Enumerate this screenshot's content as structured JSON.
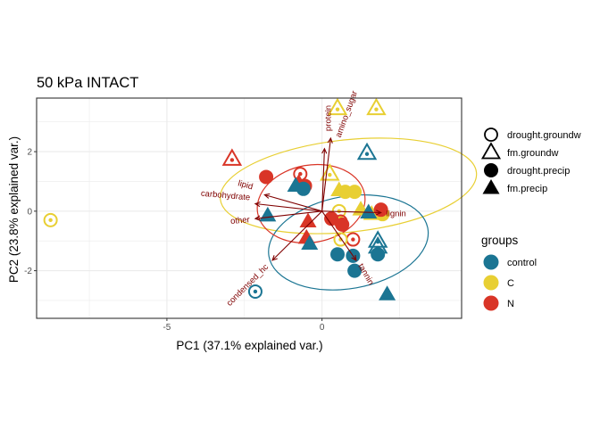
{
  "chart_data": {
    "type": "scatter",
    "title": "50 kPa INTACT",
    "xlabel": "PC1 (37.1% explained var.)",
    "ylabel": "PC2 (23.8% explained var.)",
    "xlim": [
      -9.2,
      4.5
    ],
    "ylim": [
      -3.6,
      3.8
    ],
    "x_ticks": [
      -5,
      0
    ],
    "y_ticks": [
      -2,
      0,
      2
    ],
    "x_tick_labels": [
      "-5",
      "0"
    ],
    "y_tick_labels": [
      "-2",
      "0",
      "2"
    ],
    "grid": true,
    "legend_position": "right",
    "colors": {
      "control": "#1b7593",
      "C": "#e8cf33",
      "N": "#d93527",
      "loadings": "#7f0000"
    },
    "shape_legend": {
      "entries": [
        {
          "label": "drought.groundw",
          "shape": "circle-open"
        },
        {
          "label": "fm.groundw",
          "shape": "triangle-open"
        },
        {
          "label": "drought.precip",
          "shape": "circle-filled"
        },
        {
          "label": "fm.precip",
          "shape": "triangle-filled"
        }
      ]
    },
    "color_legend": {
      "title": "groups",
      "entries": [
        {
          "label": "control",
          "group": "control"
        },
        {
          "label": "C",
          "group": "C"
        },
        {
          "label": "N",
          "group": "N"
        }
      ]
    },
    "points": [
      {
        "x": 0.5,
        "y": 3.45,
        "group": "C",
        "shape": "triangle-open"
      },
      {
        "x": 1.75,
        "y": 3.45,
        "group": "C",
        "shape": "triangle-open"
      },
      {
        "x": -2.9,
        "y": 1.75,
        "group": "N",
        "shape": "triangle-open"
      },
      {
        "x": 1.45,
        "y": 1.95,
        "group": "control",
        "shape": "triangle-open"
      },
      {
        "x": -0.7,
        "y": 1.25,
        "group": "N",
        "shape": "circle-open"
      },
      {
        "x": 0.25,
        "y": 1.25,
        "group": "C",
        "shape": "triangle-open"
      },
      {
        "x": -8.75,
        "y": -0.3,
        "group": "C",
        "shape": "circle-open"
      },
      {
        "x": -2.15,
        "y": -2.7,
        "group": "control",
        "shape": "circle-open"
      },
      {
        "x": 0.55,
        "y": 0.0,
        "group": "C",
        "shape": "circle-open"
      },
      {
        "x": 0.6,
        "y": -0.35,
        "group": "N",
        "shape": "circle-open"
      },
      {
        "x": 1.0,
        "y": -0.95,
        "group": "N",
        "shape": "circle-open"
      },
      {
        "x": 1.8,
        "y": -1.0,
        "group": "control",
        "shape": "triangle-open"
      },
      {
        "x": 1.8,
        "y": -1.2,
        "group": "control",
        "shape": "triangle-open"
      },
      {
        "x": 0.6,
        "y": -0.95,
        "group": "C",
        "shape": "circle-open"
      },
      {
        "x": -1.8,
        "y": 1.15,
        "group": "N",
        "shape": "circle-filled"
      },
      {
        "x": -0.55,
        "y": 0.85,
        "group": "N",
        "shape": "circle-filled"
      },
      {
        "x": -0.75,
        "y": 0.95,
        "group": "N",
        "shape": "triangle-filled"
      },
      {
        "x": -0.85,
        "y": 0.85,
        "group": "control",
        "shape": "triangle-filled"
      },
      {
        "x": -0.6,
        "y": 0.75,
        "group": "control",
        "shape": "circle-filled"
      },
      {
        "x": 0.55,
        "y": 0.7,
        "group": "C",
        "shape": "triangle-filled"
      },
      {
        "x": 1.05,
        "y": 0.65,
        "group": "C",
        "shape": "circle-filled"
      },
      {
        "x": 0.75,
        "y": 0.65,
        "group": "C",
        "shape": "circle-filled"
      },
      {
        "x": -1.75,
        "y": -0.15,
        "group": "control",
        "shape": "triangle-filled"
      },
      {
        "x": -0.45,
        "y": -0.35,
        "group": "N",
        "shape": "triangle-filled"
      },
      {
        "x": -0.5,
        "y": -0.9,
        "group": "N",
        "shape": "triangle-filled"
      },
      {
        "x": -0.4,
        "y": -1.1,
        "group": "control",
        "shape": "triangle-filled"
      },
      {
        "x": 0.3,
        "y": -0.25,
        "group": "N",
        "shape": "circle-filled"
      },
      {
        "x": 0.65,
        "y": -0.45,
        "group": "N",
        "shape": "circle-filled"
      },
      {
        "x": 1.25,
        "y": 0.05,
        "group": "C",
        "shape": "triangle-filled"
      },
      {
        "x": 1.6,
        "y": -0.1,
        "group": "C",
        "shape": "triangle-filled"
      },
      {
        "x": 1.95,
        "y": -0.1,
        "group": "C",
        "shape": "circle-filled"
      },
      {
        "x": 1.5,
        "y": -0.05,
        "group": "control",
        "shape": "triangle-filled"
      },
      {
        "x": 1.9,
        "y": 0.05,
        "group": "N",
        "shape": "circle-filled"
      },
      {
        "x": 0.5,
        "y": -1.45,
        "group": "control",
        "shape": "circle-filled"
      },
      {
        "x": 1.0,
        "y": -1.5,
        "group": "control",
        "shape": "circle-filled"
      },
      {
        "x": 1.8,
        "y": -1.45,
        "group": "control",
        "shape": "circle-filled"
      },
      {
        "x": 1.05,
        "y": -2.0,
        "group": "control",
        "shape": "circle-filled"
      },
      {
        "x": 2.1,
        "y": -2.8,
        "group": "control",
        "shape": "triangle-filled"
      }
    ],
    "ellipses": [
      {
        "group": "C",
        "cx": 0.85,
        "cy": 0.85,
        "rx": 4.15,
        "ry": 1.55,
        "angle_deg": -6
      },
      {
        "group": "control",
        "cx": 0.85,
        "cy": -1.05,
        "rx": 2.6,
        "ry": 1.55,
        "angle_deg": -10
      },
      {
        "group": "N",
        "cx": -0.35,
        "cy": 0.25,
        "rx": 1.75,
        "ry": 1.3,
        "angle_deg": -10
      }
    ],
    "loadings": [
      {
        "label": "protein",
        "x": 0.28,
        "y": 2.45
      },
      {
        "label": "amino_sugar",
        "x": 0.08,
        "y": 2.1
      },
      {
        "label": "lipid",
        "x": -1.85,
        "y": 0.55
      },
      {
        "label": "carbohydrate",
        "x": -2.15,
        "y": 0.25
      },
      {
        "label": "other",
        "x": -2.15,
        "y": -0.25
      },
      {
        "label": "lignin",
        "x": 1.9,
        "y": -0.05
      },
      {
        "label": "condensed_hc",
        "x": -1.6,
        "y": -1.65
      },
      {
        "label": "tannin",
        "x": 1.1,
        "y": -1.65
      }
    ]
  }
}
